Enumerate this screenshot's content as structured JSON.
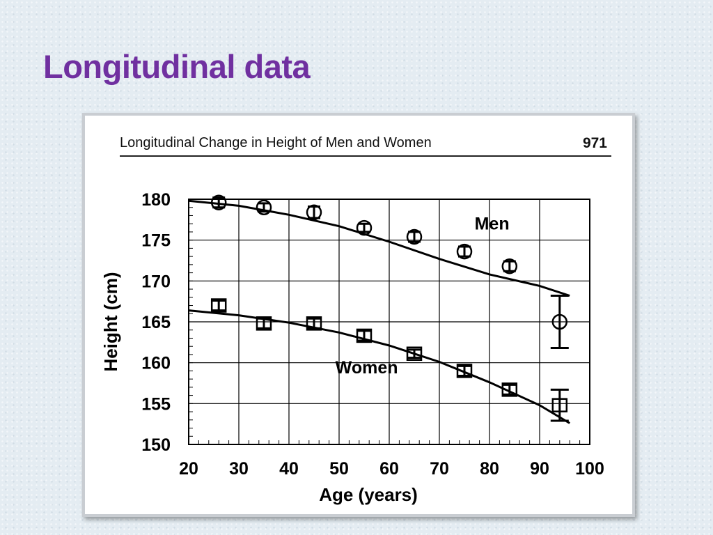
{
  "slide": {
    "title": "Longitudinal data"
  },
  "figure": {
    "header": "Longitudinal Change in Height of Men and Women",
    "page_number": "971"
  },
  "chart_data": {
    "type": "scatter",
    "xlabel": "Age (years)",
    "ylabel": "Height (cm)",
    "xlim": [
      20,
      100
    ],
    "ylim": [
      150,
      180
    ],
    "xticks": [
      20,
      30,
      40,
      50,
      60,
      70,
      80,
      90,
      100
    ],
    "yticks": [
      150,
      155,
      160,
      165,
      170,
      175,
      180
    ],
    "grid": true,
    "series": [
      {
        "name": "Men",
        "marker": "circle",
        "x": [
          26,
          35,
          45,
          55,
          65,
          75,
          84,
          94
        ],
        "y": [
          179.6,
          179.0,
          178.4,
          176.5,
          175.4,
          173.6,
          171.8,
          165.0
        ],
        "err": [
          0.6,
          0.5,
          0.7,
          0.5,
          0.6,
          0.6,
          0.6,
          3.2
        ],
        "fit_x": [
          20,
          30,
          40,
          50,
          60,
          70,
          80,
          90,
          96
        ],
        "fit_y": [
          179.8,
          179.2,
          178.1,
          176.7,
          174.8,
          172.7,
          170.8,
          169.4,
          168.2
        ]
      },
      {
        "name": "Women",
        "marker": "square",
        "x": [
          26,
          35,
          45,
          55,
          65,
          75,
          84,
          94
        ],
        "y": [
          167.0,
          164.8,
          164.8,
          163.3,
          161.1,
          159.0,
          156.7,
          154.8
        ],
        "err": [
          0.6,
          0.6,
          0.6,
          0.6,
          0.5,
          0.6,
          0.6,
          1.9
        ],
        "fit_x": [
          20,
          30,
          40,
          50,
          60,
          70,
          80,
          90,
          96
        ],
        "fit_y": [
          166.4,
          165.8,
          164.9,
          163.7,
          162.1,
          160.1,
          157.6,
          154.8,
          152.6
        ]
      }
    ]
  }
}
